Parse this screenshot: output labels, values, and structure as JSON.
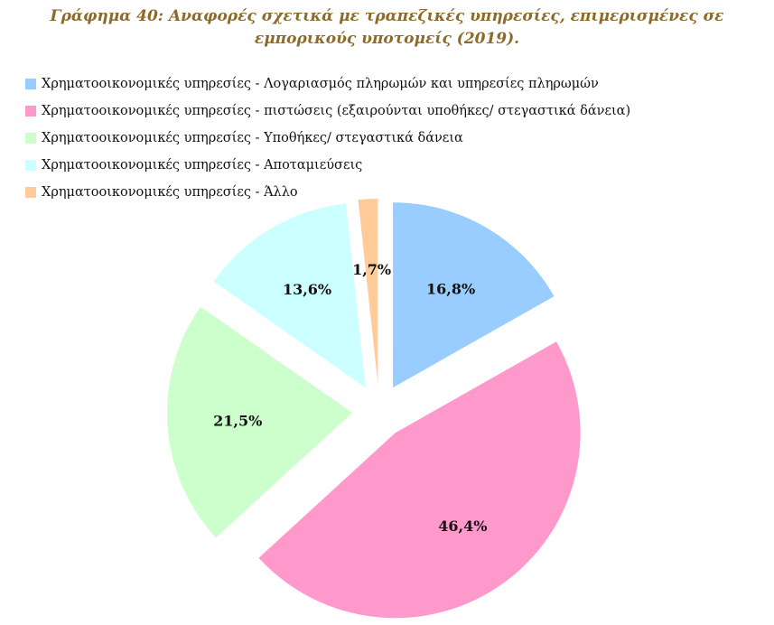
{
  "title": "Γράφημα 40: Αναφορές σχετικά με τραπεζικές υπηρεσίες, επιμερισμένες σε εμπορικούς υποτομείς (2019).",
  "chart_data": {
    "type": "pie",
    "title": "Γράφημα 40: Αναφορές σχετικά με τραπεζικές υπηρεσίες, επιμερισμένες σε εμπορικούς υποτομείς (2019).",
    "legend_position": "top",
    "exploded": true,
    "slices": [
      {
        "name": "Χρηματοοικονομικές υπηρεσίες - Λογαριασμός πληρωμών και υπηρεσίες πληρωμών",
        "value": 16.8,
        "label": "16,8%",
        "color": "#99ccff"
      },
      {
        "name": "Χρηματοοικονομικές υπηρεσίες - πιστώσεις (εξαιρούνται υποθήκες/ στεγαστικά δάνεια)",
        "value": 46.4,
        "label": "46,4%",
        "color": "#ff99cc"
      },
      {
        "name": "Χρηματοοικονομικές υπηρεσίες - Υποθήκες/ στεγαστικά δάνεια",
        "value": 21.5,
        "label": "21,5%",
        "color": "#ccffcc"
      },
      {
        "name": "Χρηματοοικονομικές υπηρεσίες - Αποταμιεύσεις",
        "value": 13.6,
        "label": "13,6%",
        "color": "#ccffff"
      },
      {
        "name": "Χρηματοοικονομικές υπηρεσίες - Άλλο",
        "value": 1.7,
        "label": "1,7%",
        "color": "#ffcc99"
      }
    ]
  }
}
